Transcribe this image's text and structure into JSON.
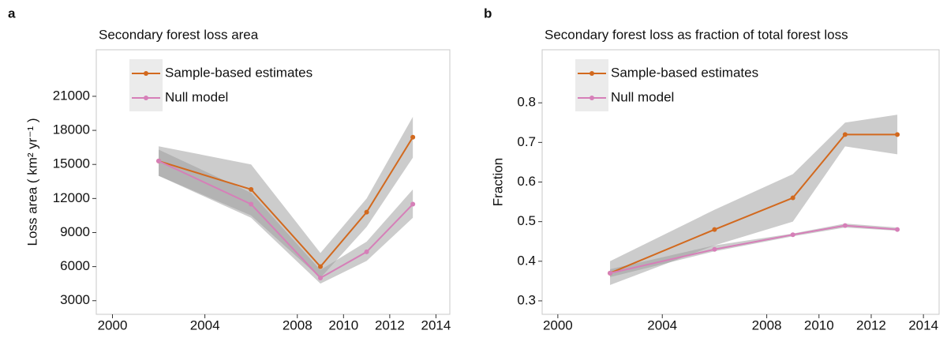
{
  "chart_data": [
    {
      "type": "line",
      "panel": "a",
      "title": "Secondary forest loss area",
      "y_label": "Loss area ( km² yr⁻¹ )",
      "x": [
        2002,
        2006,
        2009,
        2011,
        2013
      ],
      "series": [
        {
          "name": "Sample-based estimates",
          "color": "#d2691e",
          "values": [
            15300,
            12800,
            6000,
            10800,
            17400
          ],
          "lower": [
            14000,
            10500,
            5000,
            9500,
            15600
          ],
          "upper": [
            16600,
            15000,
            7200,
            12000,
            19200
          ]
        },
        {
          "name": "Null model",
          "color": "#d67fb8",
          "values": [
            15300,
            11500,
            5000,
            7300,
            11500
          ],
          "lower": [
            14000,
            10300,
            4500,
            6500,
            10300
          ],
          "upper": [
            16300,
            12500,
            5700,
            8200,
            12800
          ]
        }
      ],
      "band_color": "#9a9a9a",
      "xlim": [
        1999.3,
        2014.6
      ],
      "xticks": [
        2000,
        2004,
        2008,
        2010,
        2012,
        2014
      ],
      "ylim": [
        1800,
        25100
      ],
      "yticks": [
        3000,
        6000,
        9000,
        12000,
        15000,
        18000,
        21000
      ]
    },
    {
      "type": "line",
      "panel": "b",
      "title": "Secondary forest loss as fraction of total forest loss",
      "y_label": "Fraction",
      "x": [
        2002,
        2006,
        2009,
        2011,
        2013
      ],
      "series": [
        {
          "name": "Sample-based estimates",
          "color": "#d2691e",
          "values": [
            0.37,
            0.48,
            0.56,
            0.72,
            0.72
          ],
          "lower": [
            0.34,
            0.44,
            0.5,
            0.69,
            0.67
          ],
          "upper": [
            0.4,
            0.53,
            0.62,
            0.75,
            0.77
          ]
        },
        {
          "name": "Null model",
          "color": "#d67fb8",
          "values": [
            0.37,
            0.43,
            0.467,
            0.49,
            0.48
          ],
          "lower": [
            0.36,
            0.425,
            0.463,
            0.485,
            0.477
          ],
          "upper": [
            0.38,
            0.44,
            0.47,
            0.495,
            0.485
          ]
        }
      ],
      "band_color": "#9a9a9a",
      "xlim": [
        1999.4,
        2014.6
      ],
      "xticks": [
        2000,
        2004,
        2008,
        2010,
        2012,
        2014
      ],
      "ylim": [
        0.266,
        0.934
      ],
      "yticks": [
        0.3,
        0.4,
        0.5,
        0.6,
        0.7,
        0.8
      ]
    }
  ]
}
